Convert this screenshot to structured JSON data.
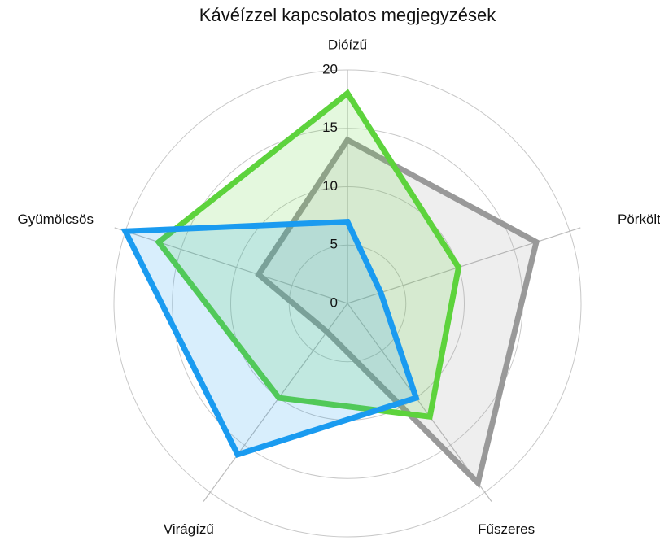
{
  "chart_data": {
    "type": "radar",
    "title": "Kávéízzel kapcsolatos megjegyzések",
    "categories": [
      "Dióízű",
      "Pörkölt",
      "Fűszeres",
      "Virágízű",
      "Gyümölcsös"
    ],
    "ylim": [
      0,
      20
    ],
    "yticks": [
      0,
      5,
      10,
      15,
      20
    ],
    "grid": true,
    "series": [
      {
        "color": "#999999",
        "values": [
          14,
          17,
          19,
          3,
          8
        ]
      },
      {
        "color": "#5dd33c",
        "values": [
          18,
          10,
          12,
          10,
          17
        ]
      },
      {
        "color": "#1a9bf0",
        "values": [
          7,
          3,
          10,
          16,
          20
        ]
      }
    ]
  }
}
